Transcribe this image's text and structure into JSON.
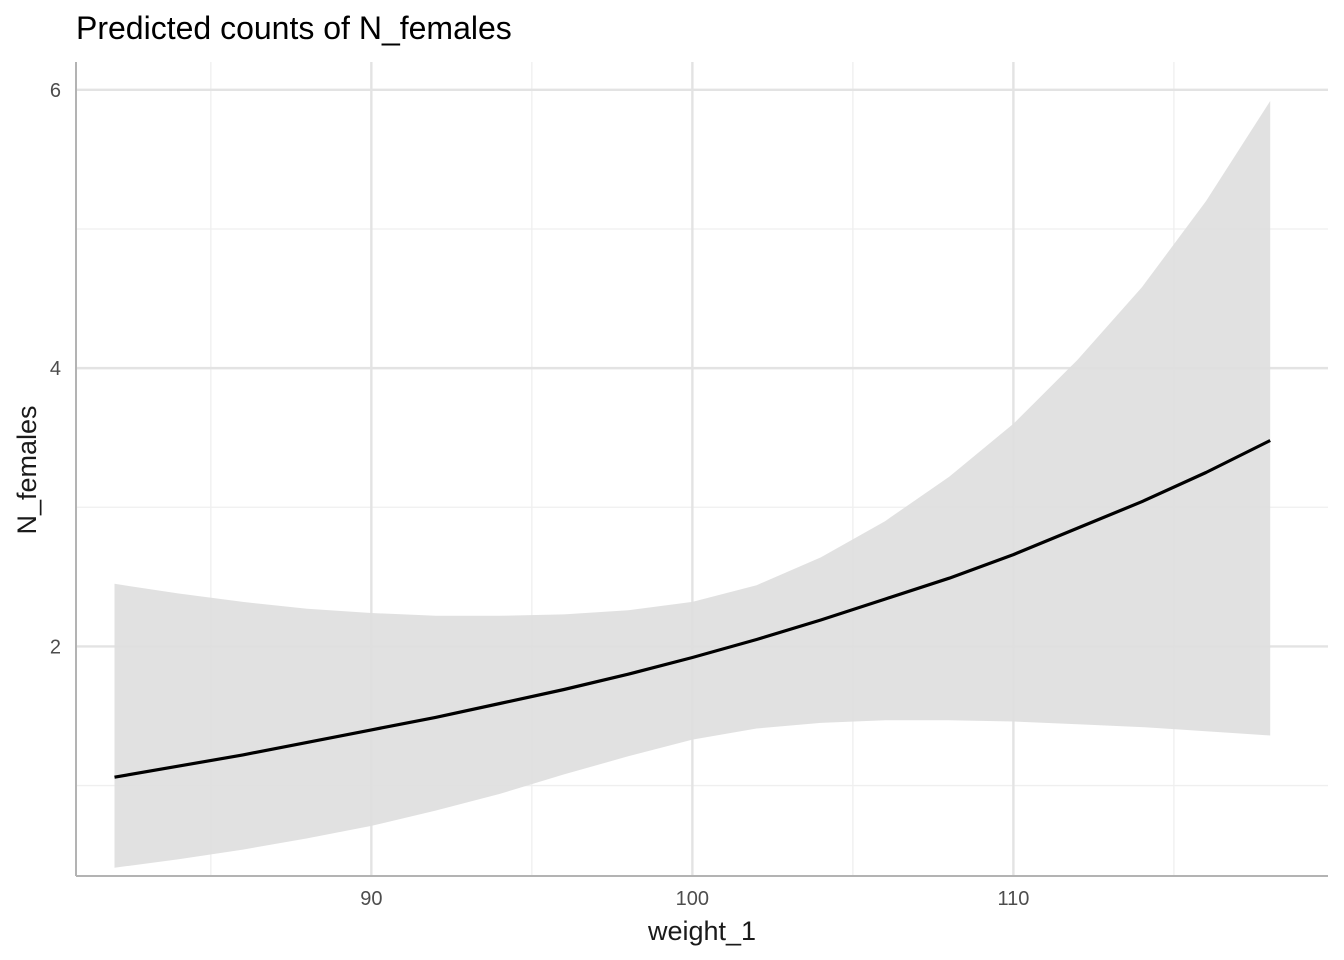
{
  "chart_data": {
    "type": "line",
    "title": "Predicted counts of N_females",
    "xlabel": "weight_1",
    "ylabel": "N_females",
    "xlim": [
      80.8,
      119.8
    ],
    "ylim": [
      0.35,
      6.2
    ],
    "x_ticks": [
      {
        "value": 90,
        "label": "90"
      },
      {
        "value": 100,
        "label": "100"
      },
      {
        "value": 110,
        "label": "110"
      }
    ],
    "y_ticks": [
      {
        "value": 2,
        "label": "2"
      },
      {
        "value": 4,
        "label": "4"
      },
      {
        "value": 6,
        "label": "6"
      }
    ],
    "x_minor_grid": [
      85,
      95,
      105,
      115
    ],
    "y_minor_grid": [
      1,
      3,
      5
    ],
    "grid": true,
    "legend": "none",
    "series": [
      {
        "x": [
          82,
          84,
          86,
          88,
          90,
          92,
          94,
          96,
          98,
          100,
          102,
          104,
          106,
          108,
          110,
          112,
          114,
          116,
          118
        ],
        "y": [
          1.06,
          1.14,
          1.22,
          1.31,
          1.4,
          1.49,
          1.59,
          1.69,
          1.8,
          1.92,
          2.05,
          2.19,
          2.34,
          2.49,
          2.66,
          2.85,
          3.04,
          3.25,
          3.48
        ],
        "lower": [
          0.41,
          0.47,
          0.54,
          0.62,
          0.71,
          0.82,
          0.94,
          1.08,
          1.21,
          1.33,
          1.41,
          1.45,
          1.47,
          1.47,
          1.46,
          1.44,
          1.42,
          1.39,
          1.36
        ],
        "upper": [
          2.45,
          2.38,
          2.32,
          2.27,
          2.24,
          2.22,
          2.22,
          2.23,
          2.26,
          2.32,
          2.44,
          2.64,
          2.9,
          3.22,
          3.6,
          4.06,
          4.58,
          5.2,
          5.92
        ]
      }
    ],
    "colors": {
      "line": "#000000",
      "ribbon": "#dedede",
      "grid_major": "#e3e3e3",
      "grid_minor": "#efefef",
      "axis": "#b3b3b3"
    }
  }
}
